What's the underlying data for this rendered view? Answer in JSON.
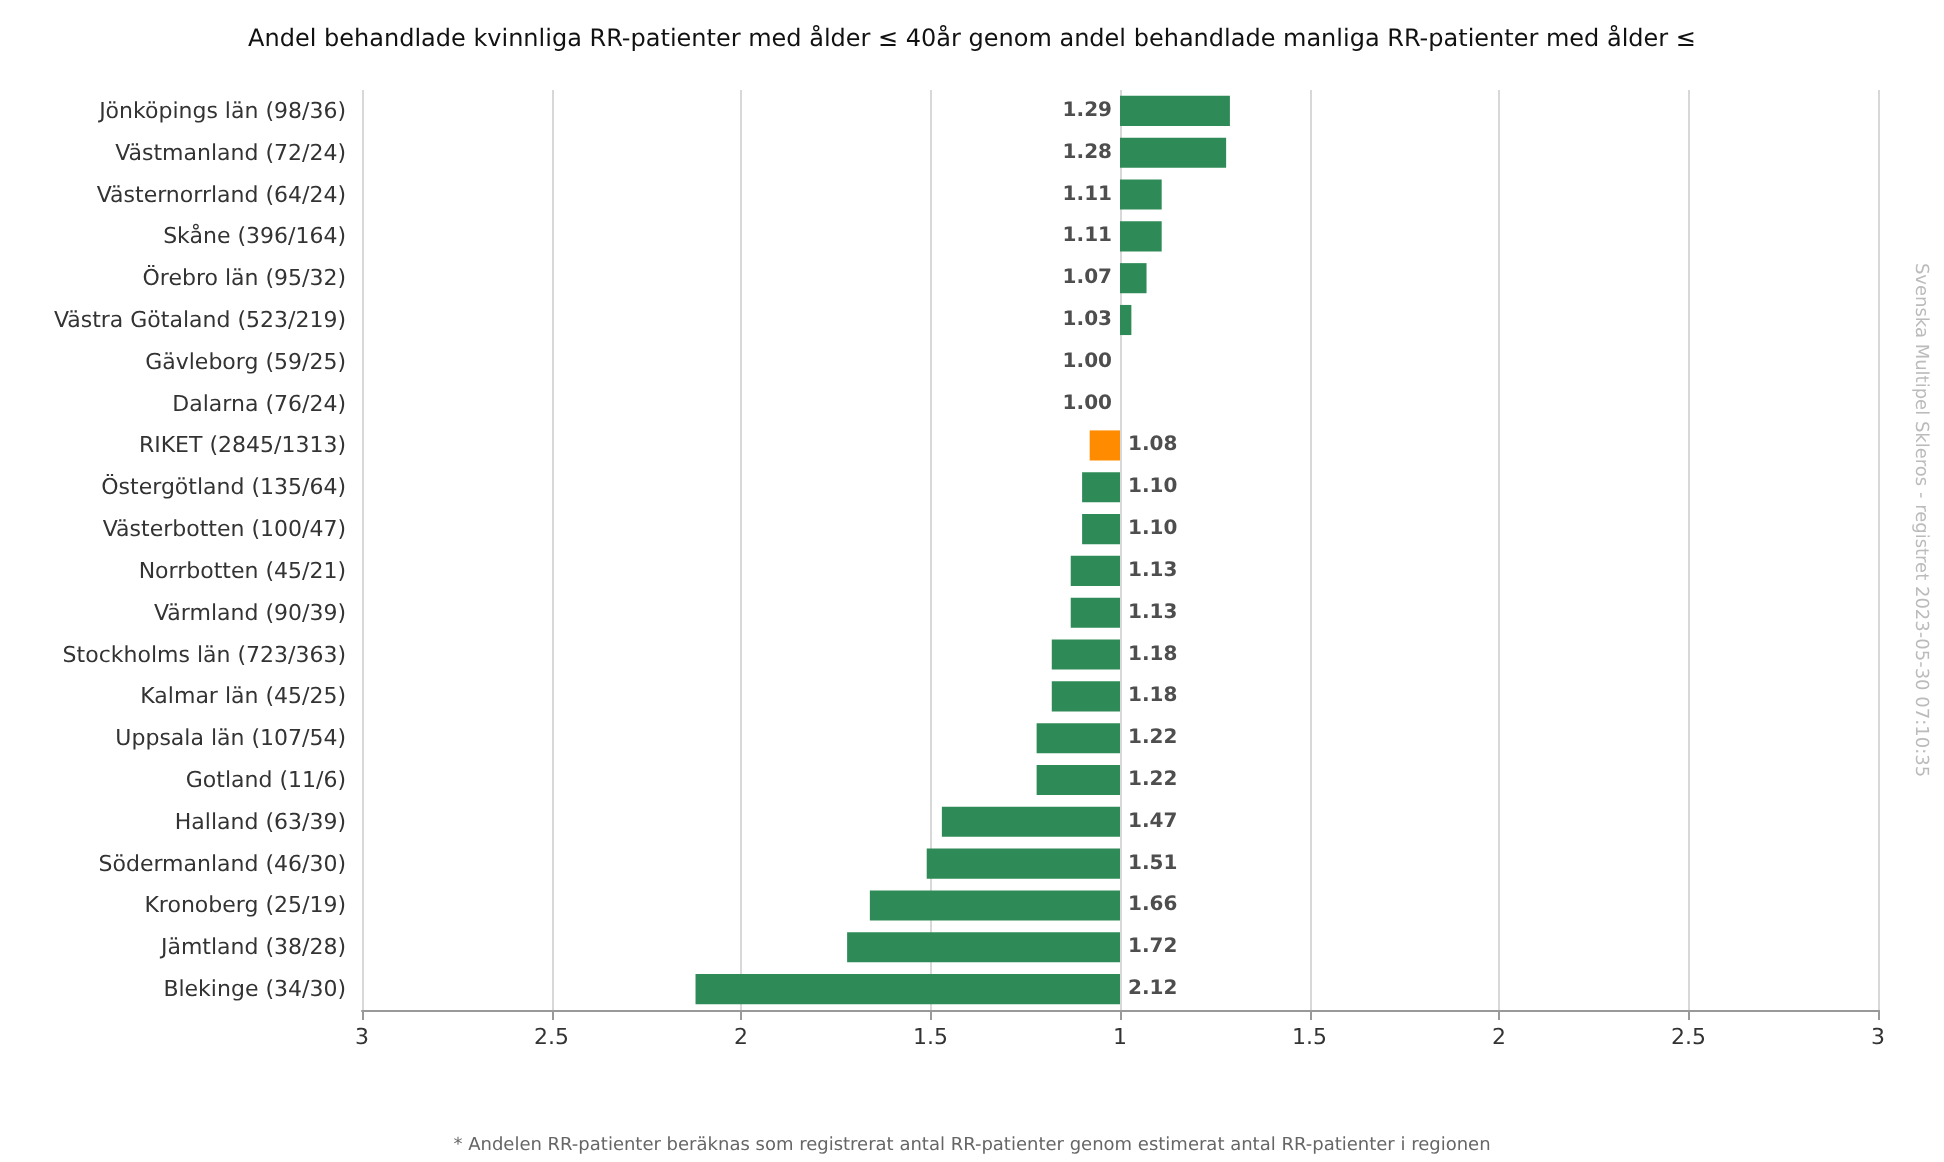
{
  "chart_data": [
    {
      "type": "bar",
      "orientation": "horizontal",
      "title": "Andel behandlade kvinnliga RR-patienter med ålder ≤ 40år genom andel behandlade manliga RR-patienter med ålder ≤",
      "categories": [
        "Jönköpings län (98/36)",
        "Västmanland (72/24)",
        "Västernorrland (64/24)",
        "Skåne (396/164)",
        "Örebro län (95/32)",
        "Västra Götaland (523/219)",
        "Gävleborg (59/25)",
        "Dalarna (76/24)",
        "RIKET (2845/1313)",
        "Östergötland (135/64)",
        "Västerbotten (100/47)",
        "Norrbotten (45/21)",
        "Värmland (90/39)",
        "Stockholms län (723/363)",
        "Kalmar län (45/25)",
        "Uppsala län (107/54)",
        "Gotland (11/6)",
        "Halland (63/39)",
        "Södermanland (46/30)",
        "Kronoberg (25/19)",
        "Jämtland (38/28)",
        "Blekinge (34/30)"
      ],
      "values": [
        null,
        null,
        null,
        null,
        null,
        null,
        null,
        null,
        1.08,
        1.1,
        1.1,
        1.13,
        1.13,
        1.18,
        1.18,
        1.22,
        1.22,
        1.47,
        1.51,
        1.66,
        1.72,
        2.12
      ],
      "value_labels": [
        null,
        null,
        null,
        null,
        null,
        null,
        null,
        null,
        "1.08",
        "1.10",
        "1.10",
        "1.13",
        "1.13",
        "1.18",
        "1.18",
        "1.22",
        "1.22",
        "1.47",
        "1.51",
        "1.66",
        "1.72",
        "2.12"
      ],
      "colors": [
        null,
        null,
        null,
        null,
        null,
        null,
        null,
        null,
        "#ff8c00",
        "#2e8b57",
        "#2e8b57",
        "#2e8b57",
        "#2e8b57",
        "#2e8b57",
        "#2e8b57",
        "#2e8b57",
        "#2e8b57",
        "#2e8b57",
        "#2e8b57",
        "#2e8b57",
        "#2e8b57",
        "#2e8b57"
      ],
      "xlim": [
        3,
        1
      ],
      "xticks": [
        3,
        2.5,
        2,
        1.5
      ],
      "grid": "x",
      "annotations": [
        "* Andelen RR-patienter beräknas som registrerat antal RR-patienter genom estimerat antal RR-patienter i regionen",
        "Svenska Multipel Skleros - registret 2023-05-30 07:10:35"
      ]
    },
    {
      "type": "bar",
      "orientation": "horizontal",
      "categories": [
        null,
        null,
        null,
        null,
        null,
        null,
        null,
        null,
        null,
        null,
        null,
        null,
        null,
        null,
        null,
        null,
        null,
        null,
        null,
        null,
        null,
        null
      ],
      "values": [
        1.29,
        1.28,
        1.11,
        1.11,
        1.07,
        1.03,
        1,
        1,
        null,
        null,
        null,
        null,
        null,
        null,
        null,
        null,
        null,
        null,
        null,
        null,
        null,
        null
      ],
      "value_labels": [
        "1.29",
        "1.28",
        "1.11",
        "1.11",
        "1.07",
        "1.03",
        "1.00",
        "1.00",
        null,
        null,
        null,
        null,
        null,
        null,
        null,
        null,
        null,
        null,
        null,
        null,
        null,
        null
      ],
      "color": "#2e8b57",
      "xlim": [
        1,
        3
      ],
      "xticks": [
        1,
        1.5,
        2,
        2.5,
        3
      ],
      "grid": "x"
    }
  ]
}
